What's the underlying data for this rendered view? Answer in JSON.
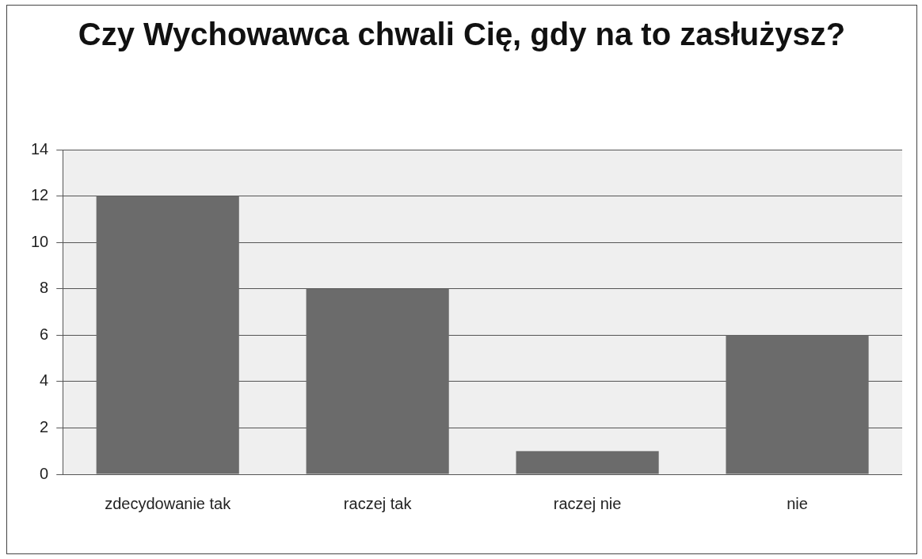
{
  "chart_data": {
    "type": "bar",
    "title": "Czy Wychowawca chwali Cię, gdy na to zasłużysz?",
    "categories": [
      "zdecydowanie tak",
      "raczej tak",
      "raczej nie",
      "nie"
    ],
    "values": [
      12,
      8,
      1,
      6
    ],
    "color": "#6b6b6b",
    "ylim": [
      0,
      14
    ],
    "yticks": [
      0,
      2,
      4,
      6,
      8,
      10,
      12,
      14
    ],
    "grid": "y"
  }
}
